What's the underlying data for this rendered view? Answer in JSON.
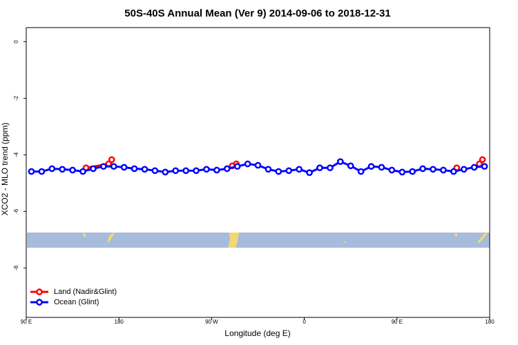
{
  "chart_data": {
    "type": "line",
    "title": "50S-40S Annual Mean (Ver 9)   2014-09-06 to 2018-12-31",
    "xlabel": "Longitude (deg E)",
    "ylabel": "XCO2 - MLO trend (ppm)",
    "xlim": [
      90,
      540
    ],
    "xticks": [
      {
        "value": 90,
        "label": "90 E"
      },
      {
        "value": 180,
        "label": "180"
      },
      {
        "value": 270,
        "label": "90 W"
      },
      {
        "value": 360,
        "label": "0"
      },
      {
        "value": 450,
        "label": "90 E"
      },
      {
        "value": 540,
        "label": "180"
      }
    ],
    "ylim": [
      -9.75,
      0.5
    ],
    "yticks": [
      0,
      -2,
      -4,
      -6,
      -8
    ],
    "legend": "bottom left",
    "series": [
      {
        "name": "Land (Nadir&Glint)",
        "color": "#ff0000",
        "x": [
          148,
          170,
          173,
          180,
          290,
          294,
          300,
          508,
          520,
          530,
          533
        ],
        "values": [
          -4.46,
          -4.32,
          -4.17,
          null,
          -4.39,
          -4.32,
          null,
          -4.46,
          null,
          -4.32,
          -4.17
        ]
      },
      {
        "name": "Ocean (Glint)",
        "color": "#0000ff",
        "x": [
          95,
          105,
          115,
          125,
          135,
          145,
          155,
          165,
          175,
          185,
          195,
          205,
          215,
          225,
          235,
          245,
          255,
          265,
          275,
          285,
          295,
          305,
          315,
          325,
          335,
          345,
          355,
          365,
          375,
          385,
          395,
          405,
          415,
          425,
          435,
          445,
          455,
          465,
          475,
          485,
          495,
          505,
          515,
          525,
          535
        ],
        "values": [
          -4.59,
          -4.59,
          -4.49,
          -4.51,
          -4.54,
          -4.59,
          -4.49,
          -4.41,
          -4.41,
          -4.44,
          -4.49,
          -4.51,
          -4.56,
          -4.61,
          -4.56,
          -4.56,
          -4.56,
          -4.51,
          -4.54,
          -4.49,
          -4.41,
          -4.32,
          -4.37,
          -4.51,
          -4.59,
          -4.56,
          -4.51,
          -4.63,
          -4.46,
          -4.46,
          -4.24,
          -4.39,
          -4.59,
          -4.41,
          -4.44,
          -4.54,
          -4.61,
          -4.59,
          -4.49,
          -4.51,
          -4.54,
          -4.59,
          -4.51,
          -4.44,
          -4.41
        ]
      }
    ]
  }
}
